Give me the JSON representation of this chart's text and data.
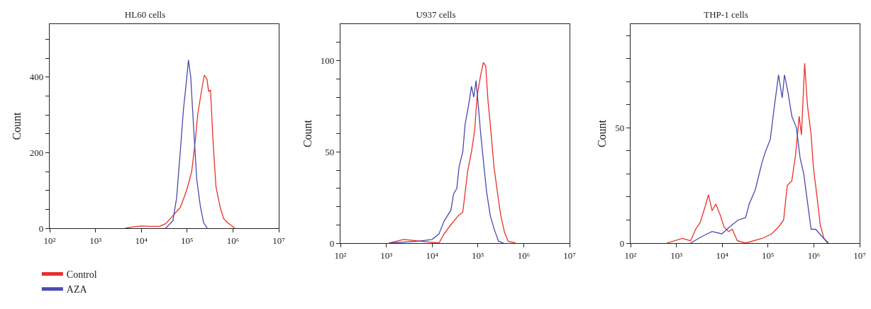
{
  "chart_data": [
    {
      "type": "line",
      "title": "HL60 cells",
      "ylabel": "Count",
      "log": "x",
      "grid": false,
      "legend": "bottom left",
      "marker": "none",
      "line_style": "solid",
      "xlim": [
        100,
        10000000
      ],
      "xticks": [
        {
          "value": 100,
          "label": "10²"
        },
        {
          "value": 1000,
          "label": "10³"
        },
        {
          "value": 10000,
          "label": "10⁴"
        },
        {
          "value": 100000,
          "label": "10⁵"
        },
        {
          "value": 1000000,
          "label": "10⁶"
        },
        {
          "value": 10000000,
          "label": "10⁷"
        }
      ],
      "ylim": [
        0,
        540
      ],
      "yticks": [
        0,
        {
          "value": 50,
          "label": null
        },
        {
          "value": 100,
          "label": null
        },
        {
          "value": 150,
          "label": null
        },
        200,
        {
          "value": 250,
          "label": null
        },
        {
          "value": 300,
          "label": null
        },
        {
          "value": 350,
          "label": null
        },
        400,
        {
          "value": 450,
          "label": null
        },
        {
          "value": 500,
          "label": null
        }
      ],
      "series": [
        {
          "name": "Control",
          "color": "#e8312a",
          "x": [
            4500,
            7000,
            10000,
            15000,
            25000,
            34000,
            49000,
            60000,
            71000,
            85000,
            100000,
            126000,
            150000,
            170000,
            204000,
            237000,
            270000,
            295000,
            324000,
            372000,
            427000,
            537000,
            631000,
            759000,
            912000,
            1100000
          ],
          "values": [
            0,
            4,
            6,
            5,
            5,
            12,
            33,
            45,
            55,
            80,
            104,
            150,
            229,
            300,
            360,
            405,
            395,
            362,
            365,
            220,
            109,
            51,
            25,
            15,
            8,
            0
          ]
        },
        {
          "name": "AZA",
          "color": "#4a4ab0",
          "x": [
            34000,
            49000,
            59000,
            71000,
            83000,
            95000,
            107000,
            120000,
            135000,
            162000,
            195000,
            229000,
            275000
          ],
          "values": [
            0,
            20,
            80,
            203,
            313,
            380,
            445,
            400,
            290,
            130,
            57,
            15,
            0
          ]
        }
      ]
    },
    {
      "type": "line",
      "title": "U937 cells",
      "ylabel": "Count",
      "log": "x",
      "grid": false,
      "legend": false,
      "marker": "none",
      "line_style": "solid",
      "xlim": [
        100,
        10000000
      ],
      "xticks": [
        {
          "value": 100,
          "label": "10²"
        },
        {
          "value": 1000,
          "label": "10³"
        },
        {
          "value": 10000,
          "label": "10⁴"
        },
        {
          "value": 100000,
          "label": "10⁵"
        },
        {
          "value": 1000000,
          "label": "10⁶"
        },
        {
          "value": 10000000,
          "label": "10⁷"
        }
      ],
      "ylim": [
        0,
        120
      ],
      "yticks": [
        0,
        {
          "value": 10,
          "label": null
        },
        {
          "value": 20,
          "label": null
        },
        {
          "value": 30,
          "label": null
        },
        {
          "value": 40,
          "label": null
        },
        50,
        {
          "value": 60,
          "label": null
        },
        {
          "value": 70,
          "label": null
        },
        {
          "value": 80,
          "label": null
        },
        {
          "value": 90,
          "label": null
        },
        100,
        {
          "value": 110,
          "label": null
        }
      ],
      "series": [
        {
          "color": "#e8312a",
          "x": [
            1148,
            2399,
            14130,
            18200,
            25700,
            37150,
            46770,
            60260,
            72440,
            85110,
            95500,
            114800,
            131800,
            147900,
            166000,
            186200,
            223900,
            269200,
            316200,
            380200,
            457100,
            660700
          ],
          "values": [
            0,
            2,
            0,
            5,
            10,
            15,
            17,
            40,
            50,
            62,
            80,
            92,
            99,
            97,
            78,
            65,
            42,
            27,
            15,
            6,
            1,
            0
          ]
        },
        {
          "color": "#4a4ab0",
          "x": [
            1148,
            4898,
            10000,
            14130,
            18200,
            25700,
            29510,
            34670,
            38900,
            46770,
            52480,
            63100,
            72440,
            81280,
            91200,
            102300,
            114800,
            131800,
            154900,
            186200,
            223900,
            281800,
            363100
          ],
          "values": [
            0,
            1,
            2,
            5,
            12,
            18,
            27,
            30,
            42,
            50,
            65,
            76,
            86,
            80,
            89,
            75,
            60,
            45,
            28,
            15,
            8,
            1,
            0
          ]
        }
      ]
    },
    {
      "type": "line",
      "title": "THP-1 cells",
      "ylabel": "Count",
      "log": "x",
      "grid": false,
      "legend": false,
      "marker": "none",
      "line_style": "solid",
      "xlim": [
        100,
        10000000
      ],
      "xticks": [
        {
          "value": 100,
          "label": "10²"
        },
        {
          "value": 1000,
          "label": "10³"
        },
        {
          "value": 10000,
          "label": "10⁴"
        },
        {
          "value": 100000,
          "label": "10⁵"
        },
        {
          "value": 1000000,
          "label": "10⁶"
        },
        {
          "value": 10000000,
          "label": "10⁷"
        }
      ],
      "ylim": [
        0,
        95
      ],
      "yticks": [
        0,
        {
          "value": 10,
          "label": null
        },
        {
          "value": 20,
          "label": null
        },
        {
          "value": 30,
          "label": null
        },
        {
          "value": 40,
          "label": null
        },
        50,
        {
          "value": 60,
          "label": null
        },
        {
          "value": 70,
          "label": null
        },
        {
          "value": 80,
          "label": null
        },
        {
          "value": 90,
          "label": null
        }
      ],
      "series": [
        {
          "color": "#e8312a",
          "x": [
            617,
            1349,
            2042,
            2630,
            3311,
            4266,
            5012,
            6026,
            7244,
            9120,
            10965,
            13800,
            16600,
            21380,
            32360,
            74130,
            120000,
            170000,
            219000,
            263000,
            331000,
            398000,
            479000,
            537000,
            631000,
            724000,
            871000,
            977000,
            1175000,
            1380000,
            1660000,
            1995000
          ],
          "values": [
            0,
            2,
            1,
            6,
            9,
            16,
            21,
            14,
            17,
            12,
            7,
            5,
            6,
            1,
            0,
            2,
            4,
            7,
            10,
            25,
            27,
            38,
            55,
            47,
            78,
            60,
            47,
            33,
            20,
            8,
            2,
            0
          ]
        },
        {
          "color": "#4a4ab0",
          "x": [
            2042,
            3715,
            6026,
            9772,
            16600,
            22390,
            32360,
            38900,
            52480,
            74130,
            89100,
            112200,
            134900,
            169800,
            204200,
            229100,
            275400,
            331100,
            416900,
            501200,
            602600,
            724400,
            871000,
            1096000,
            1479000,
            2089000
          ],
          "values": [
            0,
            3,
            5,
            4,
            8,
            10,
            11,
            17,
            23,
            35,
            40,
            45,
            58,
            73,
            63,
            73,
            65,
            55,
            50,
            37,
            30,
            18,
            6,
            6,
            3,
            0
          ]
        }
      ]
    }
  ]
}
